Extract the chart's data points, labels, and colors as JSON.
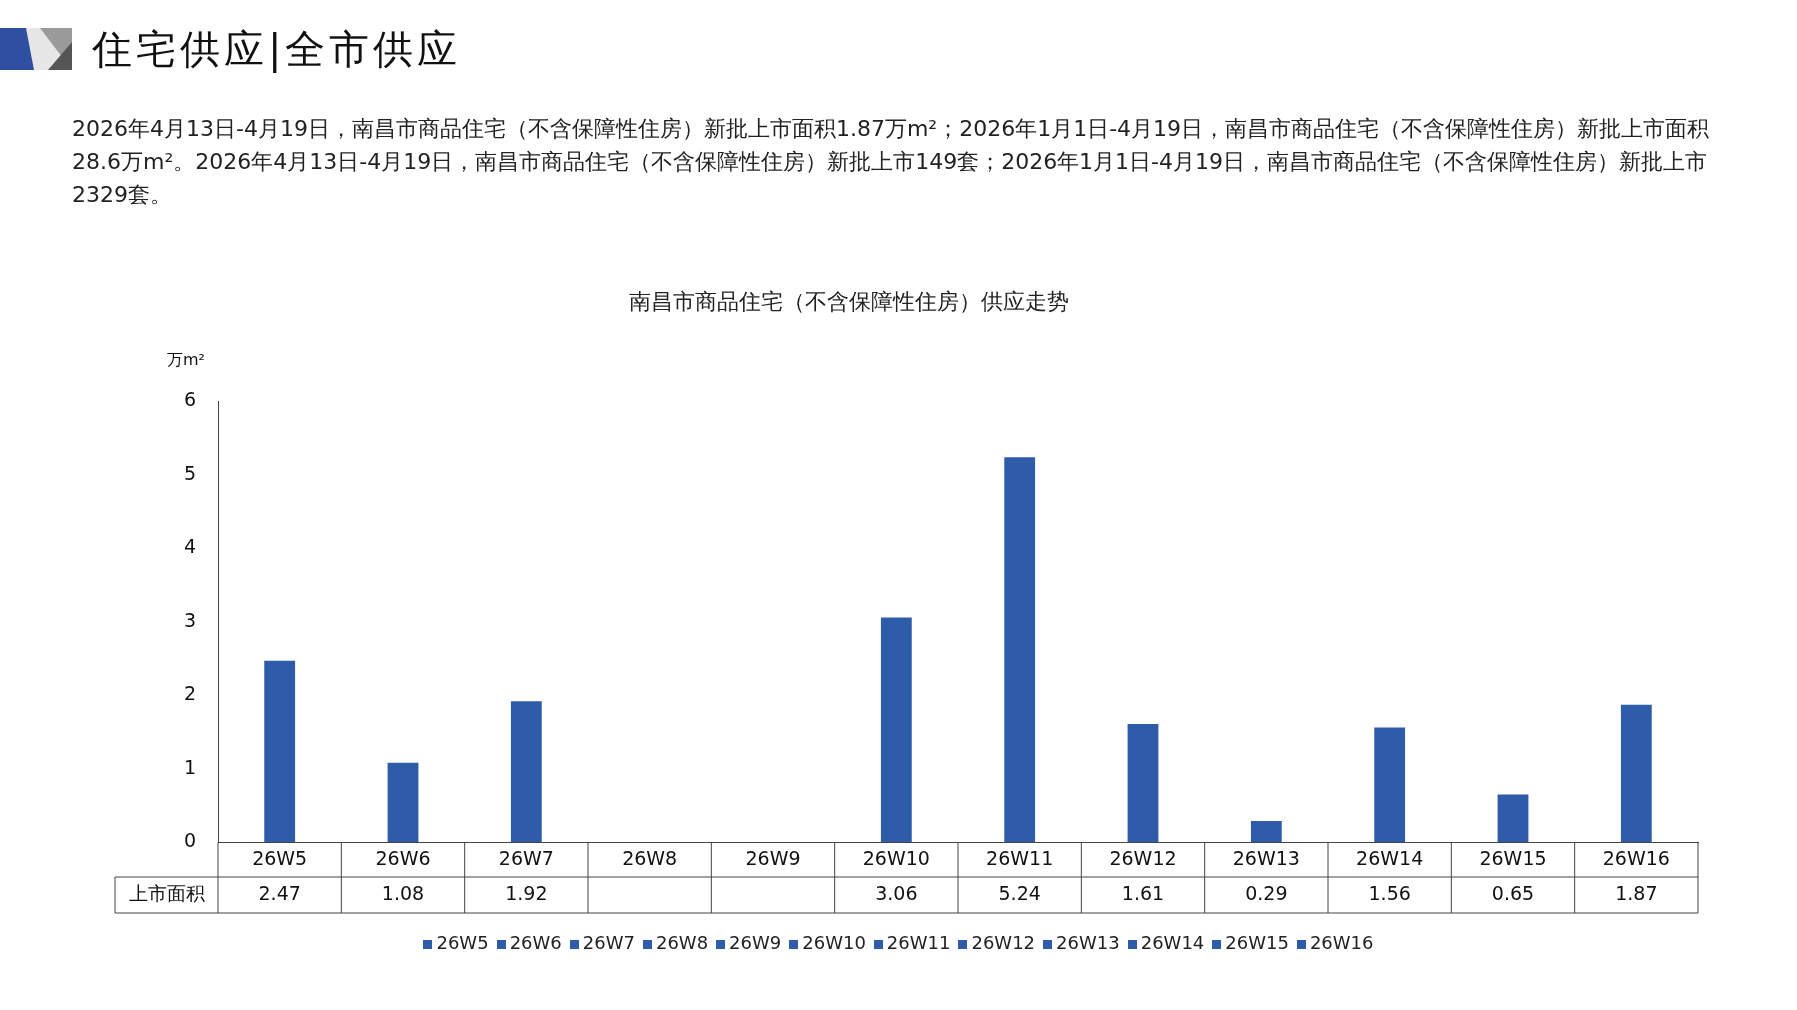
{
  "chart_data": {
    "type": "bar",
    "title": "南昌市商品住宅（不含保障性住房）供应走势",
    "ylabel": "万m²",
    "annotations": [
      "住宅供应|全市供应",
      "2026年4月13日-4月19日，南昌市商品住宅（不含保障性住房）新批上市面积1.87万m²；2026年1月1日-4月19日，南昌市商品住宅（不含保障性住房）新批上市面积28.6万m²。2026年4月13日-4月19日，南昌市商品住宅（不含保障性住房）新批上市149套；2026年1月1日-4月19日，南昌市商品住宅（不含保障性住房）新批上市2329套。"
    ],
    "categories": [
      "26W5",
      "26W6",
      "26W7",
      "26W8",
      "26W9",
      "26W10",
      "26W11",
      "26W12",
      "26W13",
      "26W14",
      "26W15",
      "26W16"
    ],
    "series": [
      {
        "name": "上市面积",
        "color": "#2e5ca8",
        "values": [
          2.47,
          1.08,
          1.92,
          null,
          null,
          3.06,
          5.24,
          1.61,
          0.29,
          1.56,
          0.65,
          1.87
        ]
      }
    ],
    "ylim": [
      0,
      6
    ],
    "yticks": [
      0,
      1,
      2,
      3,
      4,
      5,
      6
    ],
    "grid": false,
    "legend": "bottom",
    "data_labels": true
  }
}
